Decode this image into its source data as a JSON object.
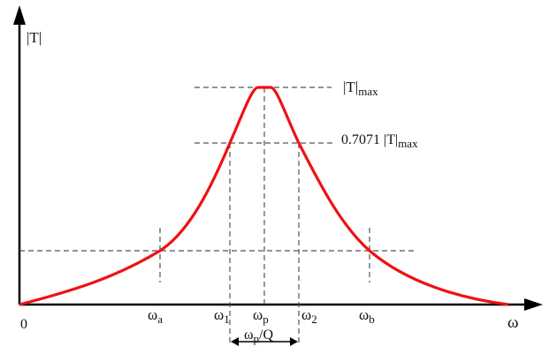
{
  "diagram": {
    "y_axis_label": "|T|",
    "x_axis_label": "ω",
    "origin_label": "0",
    "curve_color": "#ee1111",
    "axis_color": "#000000",
    "guide_color": "#555555",
    "peak": {
      "base": "|T|",
      "subscript": "max"
    },
    "half_power": {
      "prefix": "0.7071 |T|",
      "subscript": "max"
    },
    "x_marks": [
      {
        "base": "ω",
        "sub": "a"
      },
      {
        "base": "ω",
        "sub": "1"
      },
      {
        "base": "ω",
        "sub": "p"
      },
      {
        "base": "ω",
        "sub": "2"
      },
      {
        "base": "ω",
        "sub": "b"
      }
    ],
    "bandwidth": {
      "base": "ω",
      "sub": "p",
      "suffix": "/Q"
    }
  }
}
